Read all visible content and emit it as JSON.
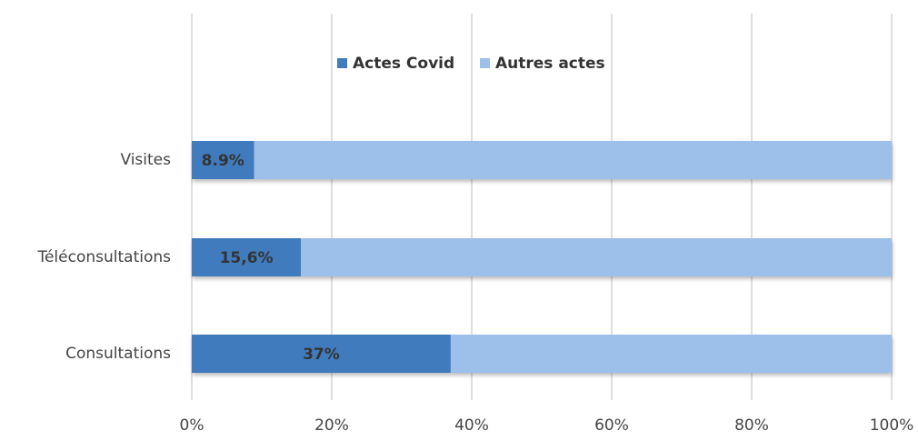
{
  "chart_data": {
    "type": "stacked_barh",
    "categories": [
      "Visites",
      "Téléconsultations",
      "Consultations"
    ],
    "series": [
      {
        "name": "Actes Covid",
        "color": "#3f7bbd",
        "values": [
          8.9,
          15.6,
          37
        ],
        "value_labels": [
          "8.9%",
          "15,6%",
          "37%"
        ]
      },
      {
        "name": "Autres actes",
        "color": "#9cc0e9",
        "values": [
          91.1,
          84.4,
          63
        ]
      }
    ],
    "xlim": [
      0,
      100
    ],
    "xticks": [
      {
        "value": 0,
        "label": "0%"
      },
      {
        "value": 20,
        "label": "20%"
      },
      {
        "value": 40,
        "label": "40%"
      },
      {
        "value": 60,
        "label": "60%"
      },
      {
        "value": 80,
        "label": "80%"
      },
      {
        "value": 100,
        "label": "100%"
      }
    ],
    "grid": true,
    "legend": "top"
  }
}
